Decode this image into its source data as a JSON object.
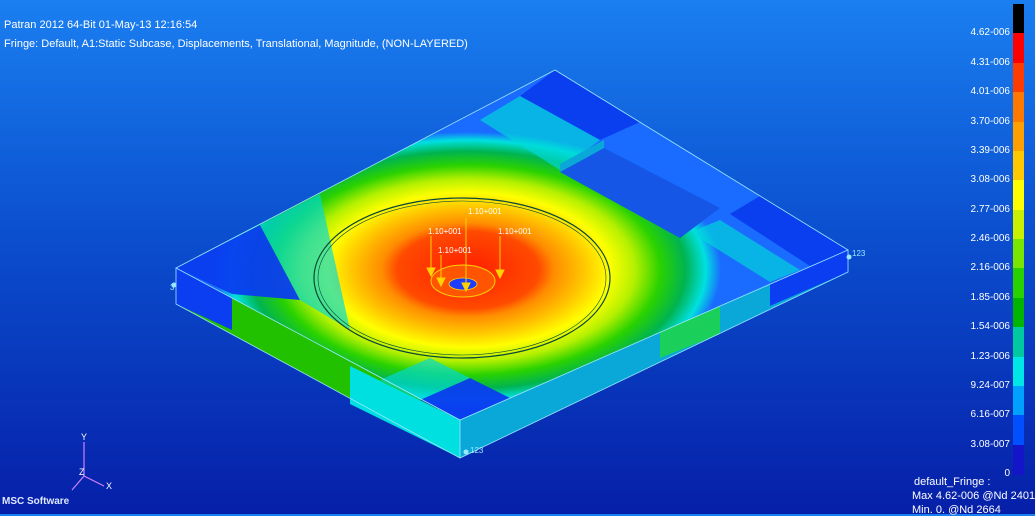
{
  "header": {
    "line1": "Patran 2012 64-Bit 01-May-13 12:16:54",
    "line2": "Fringe: Default, A1:Static Subcase, Displacements, Translational, Magnitude, (NON-LAYERED)"
  },
  "legend": {
    "labels": [
      "4.62-006",
      "4.31-006",
      "4.01-006",
      "3.70-006",
      "3.39-006",
      "3.08-006",
      "2.77-006",
      "2.46-006",
      "2.16-006",
      "1.85-006",
      "1.54-006",
      "1.23-006",
      "9.24-007",
      "6.16-007",
      "3.08-007",
      "0"
    ],
    "colors": [
      "#000000",
      "#ff0000",
      "#ff3c00",
      "#ff7800",
      "#ffa000",
      "#ffc800",
      "#ffff00",
      "#c8f000",
      "#78e600",
      "#28d200",
      "#00b400",
      "#00c8a0",
      "#00e6e6",
      "#00a0ff",
      "#0050ff",
      "#1414c8"
    ]
  },
  "loads": {
    "labels": [
      "1.10+001",
      "1.10+001",
      "1.10+001",
      "1.10+001"
    ]
  },
  "constraints": {
    "left": "3",
    "right": "123",
    "bottom": "123"
  },
  "axes": {
    "x": "X",
    "y": "Y",
    "z": "Z"
  },
  "fringe_info": {
    "title": "default_Fringe :",
    "max": "Max 4.62-006 @Nd 2401",
    "min": "Min. 0. @Nd 2664"
  },
  "logo": {
    "text": "MSC Software"
  }
}
